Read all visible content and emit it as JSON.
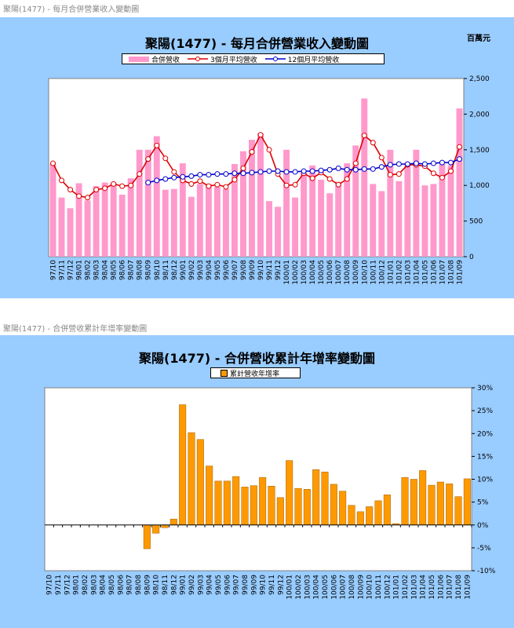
{
  "chart1": {
    "caption": "聚陽(1477) - 每月合併營業收入變動圖",
    "title": "聚陽(1477) - 每月合併營業收入變動圖",
    "unit": "百萬元",
    "legend": [
      "合併營收",
      "3個月平均營收",
      "12個月平均營收"
    ],
    "colors": {
      "bar": "#ff99cc",
      "ma3": "#dd0000",
      "ma12": "#0000cc",
      "panel": "#99ccff"
    }
  },
  "chart2": {
    "caption": "聚陽(1477) - 合併營收累計年增率變動圖",
    "title": "聚陽(1477) - 合併營收累計年增率變動圖",
    "legend": [
      "累計營收年增率"
    ],
    "colors": {
      "bar": "#ff9900",
      "panel": "#99ccff"
    }
  },
  "chart_data": [
    {
      "type": "bar",
      "title": "聚陽(1477) - 每月合併營業收入變動圖",
      "unit": "百萬元",
      "ylim": [
        0,
        2500
      ],
      "yticks": [
        "0",
        "500",
        "1,000",
        "1,500",
        "2,000",
        "2,500"
      ],
      "grid": false,
      "legend_position": "top",
      "x": [
        "97/10",
        "97/11",
        "97/12",
        "98/01",
        "98/02",
        "98/03",
        "98/04",
        "98/05",
        "98/06",
        "98/07",
        "98/08",
        "98/09",
        "98/10",
        "98/11",
        "98/12",
        "99/01",
        "99/02",
        "99/03",
        "99/04",
        "99/05",
        "99/06",
        "99/07",
        "99/08",
        "99/09",
        "99/10",
        "99/11",
        "99/12",
        "100/01",
        "100/02",
        "100/03",
        "100/04",
        "100/05",
        "100/06",
        "100/07",
        "100/08",
        "100/09",
        "100/10",
        "100/11",
        "100/12",
        "101/01",
        "101/02",
        "101/03",
        "101/04",
        "101/05",
        "101/06",
        "101/07",
        "101/08",
        "101/09"
      ],
      "series": [
        {
          "name": "合併營收",
          "type": "bar",
          "values": [
            1310,
            830,
            680,
            1030,
            790,
            990,
            1040,
            1040,
            870,
            1100,
            1500,
            1500,
            1690,
            940,
            950,
            1310,
            840,
            1020,
            1020,
            980,
            950,
            1300,
            1480,
            1640,
            1730,
            780,
            700,
            1500,
            830,
            1180,
            1280,
            1080,
            890,
            1050,
            1310,
            1560,
            2220,
            1020,
            920,
            1500,
            1060,
            1320,
            1500,
            1000,
            1020,
            1300,
            1280,
            2080
          ]
        },
        {
          "name": "3個月平均營收",
          "type": "line",
          "values": [
            1310,
            1070,
            940,
            850,
            830,
            940,
            960,
            1020,
            990,
            1000,
            1160,
            1370,
            1560,
            1380,
            1190,
            1070,
            1020,
            1060,
            990,
            1010,
            980,
            1080,
            1240,
            1470,
            1710,
            1500,
            1160,
            1000,
            1010,
            1170,
            1100,
            1180,
            1090,
            1010,
            1090,
            1310,
            1700,
            1600,
            1390,
            1150,
            1160,
            1290,
            1290,
            1270,
            1170,
            1110,
            1200,
            1540
          ]
        },
        {
          "name": "12個月平均營收",
          "type": "line",
          "values": [
            null,
            null,
            null,
            null,
            null,
            null,
            null,
            null,
            null,
            null,
            null,
            1040,
            1070,
            1090,
            1110,
            1120,
            1130,
            1150,
            1150,
            1160,
            1160,
            1170,
            1170,
            1180,
            1190,
            1200,
            1200,
            1190,
            1190,
            1200,
            1200,
            1210,
            1220,
            1240,
            1220,
            1220,
            1230,
            1230,
            1260,
            1290,
            1300,
            1300,
            1310,
            1300,
            1310,
            1320,
            1320,
            1370
          ]
        }
      ]
    },
    {
      "type": "bar",
      "title": "聚陽(1477) - 合併營收累計年增率變動圖",
      "ylim": [
        -10,
        30
      ],
      "yticks": [
        "-10%",
        "-5%",
        "0%",
        "5%",
        "10%",
        "15%",
        "20%",
        "25%",
        "30%"
      ],
      "grid": false,
      "legend_position": "top",
      "x": [
        "97/10",
        "97/11",
        "97/12",
        "98/01",
        "98/02",
        "98/03",
        "98/04",
        "98/05",
        "98/06",
        "98/07",
        "98/08",
        "98/09",
        "98/10",
        "98/11",
        "98/12",
        "99/01",
        "99/02",
        "99/03",
        "99/04",
        "99/05",
        "99/06",
        "99/07",
        "99/08",
        "99/09",
        "99/10",
        "99/11",
        "99/12",
        "100/01",
        "100/02",
        "100/03",
        "100/04",
        "100/05",
        "100/06",
        "100/07",
        "100/08",
        "100/09",
        "100/10",
        "100/11",
        "100/12",
        "101/01",
        "101/02",
        "101/03",
        "101/04",
        "101/05",
        "101/06",
        "101/07",
        "101/08",
        "101/09"
      ],
      "series": [
        {
          "name": "累計營收年增率",
          "values": [
            null,
            null,
            null,
            null,
            null,
            null,
            null,
            null,
            null,
            null,
            null,
            -5.2,
            -1.8,
            -0.6,
            1.3,
            26.3,
            20.2,
            18.7,
            12.9,
            9.6,
            9.6,
            10.6,
            8.3,
            8.6,
            10.4,
            8.5,
            6.0,
            14.1,
            8.0,
            7.8,
            12.1,
            11.6,
            8.9,
            7.4,
            4.3,
            2.9,
            4.0,
            5.3,
            6.6,
            0.3,
            10.4,
            10.0,
            11.9,
            8.7,
            9.4,
            9.0,
            6.2,
            10.1
          ]
        }
      ]
    }
  ]
}
